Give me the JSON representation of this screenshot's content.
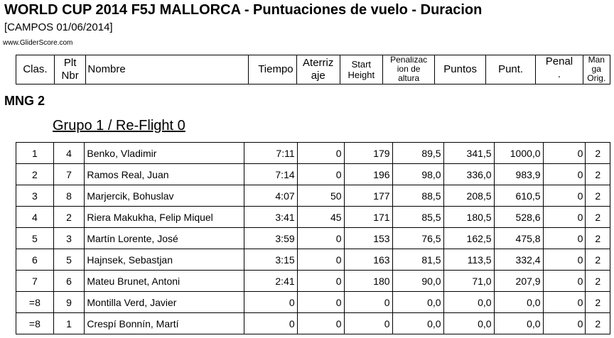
{
  "header": {
    "title": "WORLD CUP 2014 F5J MALLORCA - Puntuaciones de vuelo - Duracion",
    "subtitle": "[CAMPOS 01/06/2014]",
    "site": "www.GliderScore.com"
  },
  "columns": {
    "clas": "Clas.",
    "plt_1": "Plt",
    "plt_2": "Nbr",
    "nombre": "Nombre",
    "tiempo": "Tiempo",
    "aterriz_1": "Aterriz",
    "aterriz_2": "aje",
    "start_1": "Start",
    "start_2": "Height",
    "penal_alt_1": "Penalizac",
    "penal_alt_2": "ion de",
    "penal_alt_3": "altura",
    "puntos": "Puntos",
    "punt": "Punt.",
    "penal_1": "Penal",
    "penal_2": ".",
    "manga_1": "Man",
    "manga_2": "ga",
    "manga_3": "Orig."
  },
  "section": {
    "round": "MNG 2",
    "group": "Grupo 1 / Re-Flight 0"
  },
  "rows": [
    {
      "clas": "1",
      "plt": "4",
      "nombre": "Benko, Vladimir",
      "tiempo": "7:11",
      "aterrizaje": "0",
      "start_height": "179",
      "penal_altura": "89,5",
      "puntos": "341,5",
      "punt": "1000,0",
      "penal": "0",
      "manga": "2"
    },
    {
      "clas": "2",
      "plt": "7",
      "nombre": "Ramos Real, Juan",
      "tiempo": "7:14",
      "aterrizaje": "0",
      "start_height": "196",
      "penal_altura": "98,0",
      "puntos": "336,0",
      "punt": "983,9",
      "penal": "0",
      "manga": "2"
    },
    {
      "clas": "3",
      "plt": "8",
      "nombre": "Marjercik, Bohuslav",
      "tiempo": "4:07",
      "aterrizaje": "50",
      "start_height": "177",
      "penal_altura": "88,5",
      "puntos": "208,5",
      "punt": "610,5",
      "penal": "0",
      "manga": "2"
    },
    {
      "clas": "4",
      "plt": "2",
      "nombre": "Riera Makukha, Felip Miquel",
      "tiempo": "3:41",
      "aterrizaje": "45",
      "start_height": "171",
      "penal_altura": "85,5",
      "puntos": "180,5",
      "punt": "528,6",
      "penal": "0",
      "manga": "2"
    },
    {
      "clas": "5",
      "plt": "3",
      "nombre": "Martín Lorente, José",
      "tiempo": "3:59",
      "aterrizaje": "0",
      "start_height": "153",
      "penal_altura": "76,5",
      "puntos": "162,5",
      "punt": "475,8",
      "penal": "0",
      "manga": "2"
    },
    {
      "clas": "6",
      "plt": "5",
      "nombre": "Hajnsek, Sebastjan",
      "tiempo": "3:15",
      "aterrizaje": "0",
      "start_height": "163",
      "penal_altura": "81,5",
      "puntos": "113,5",
      "punt": "332,4",
      "penal": "0",
      "manga": "2"
    },
    {
      "clas": "7",
      "plt": "6",
      "nombre": "Mateu Brunet, Antoni",
      "tiempo": "2:41",
      "aterrizaje": "0",
      "start_height": "180",
      "penal_altura": "90,0",
      "puntos": "71,0",
      "punt": "207,9",
      "penal": "0",
      "manga": "2"
    },
    {
      "clas": "=8",
      "plt": "9",
      "nombre": "Montilla Verd, Javier",
      "tiempo": "0",
      "aterrizaje": "0",
      "start_height": "0",
      "penal_altura": "0,0",
      "puntos": "0,0",
      "punt": "0,0",
      "penal": "0",
      "manga": "2"
    },
    {
      "clas": "=8",
      "plt": "1",
      "nombre": "Crespí Bonnín, Martí",
      "tiempo": "0",
      "aterrizaje": "0",
      "start_height": "0",
      "penal_altura": "0,0",
      "puntos": "0,0",
      "punt": "0,0",
      "penal": "0",
      "manga": "2"
    }
  ]
}
